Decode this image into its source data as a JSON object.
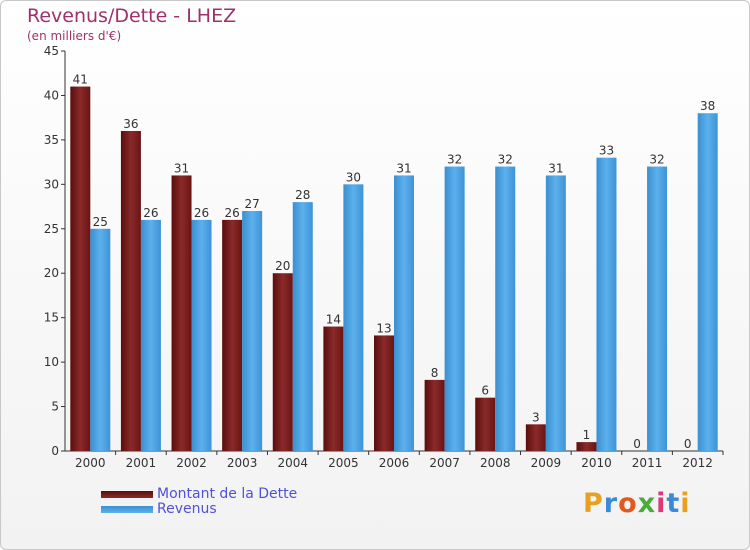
{
  "chart_data": {
    "type": "bar",
    "title": "Revenus/Dette - LHEZ",
    "subtitle": "(en milliers d'€)",
    "categories": [
      "2000",
      "2001",
      "2002",
      "2003",
      "2004",
      "2005",
      "2006",
      "2007",
      "2008",
      "2009",
      "2010",
      "2011",
      "2012"
    ],
    "series": [
      {
        "name": "Montant de la Dette",
        "color": "#7a1a1a",
        "values": [
          41,
          36,
          31,
          26,
          20,
          14,
          13,
          8,
          6,
          3,
          1,
          0,
          0
        ]
      },
      {
        "name": "Revenus",
        "color": "#4a9fe0",
        "values": [
          25,
          26,
          26,
          27,
          28,
          30,
          31,
          32,
          32,
          31,
          33,
          32,
          38
        ]
      }
    ],
    "ylim": [
      0,
      45
    ],
    "yticks": [
      0,
      5,
      10,
      15,
      20,
      25,
      30,
      35,
      40,
      45
    ],
    "grid": false,
    "legend_position": "bottom-left"
  },
  "brand": {
    "letters": [
      "P",
      "r",
      "o",
      "x",
      "i",
      "t",
      "i"
    ],
    "colors": [
      "#e8a020",
      "#3a8ad8",
      "#e05a20",
      "#4aaa3a",
      "#d83a7a",
      "#3a8ad8",
      "#e8a020"
    ]
  }
}
